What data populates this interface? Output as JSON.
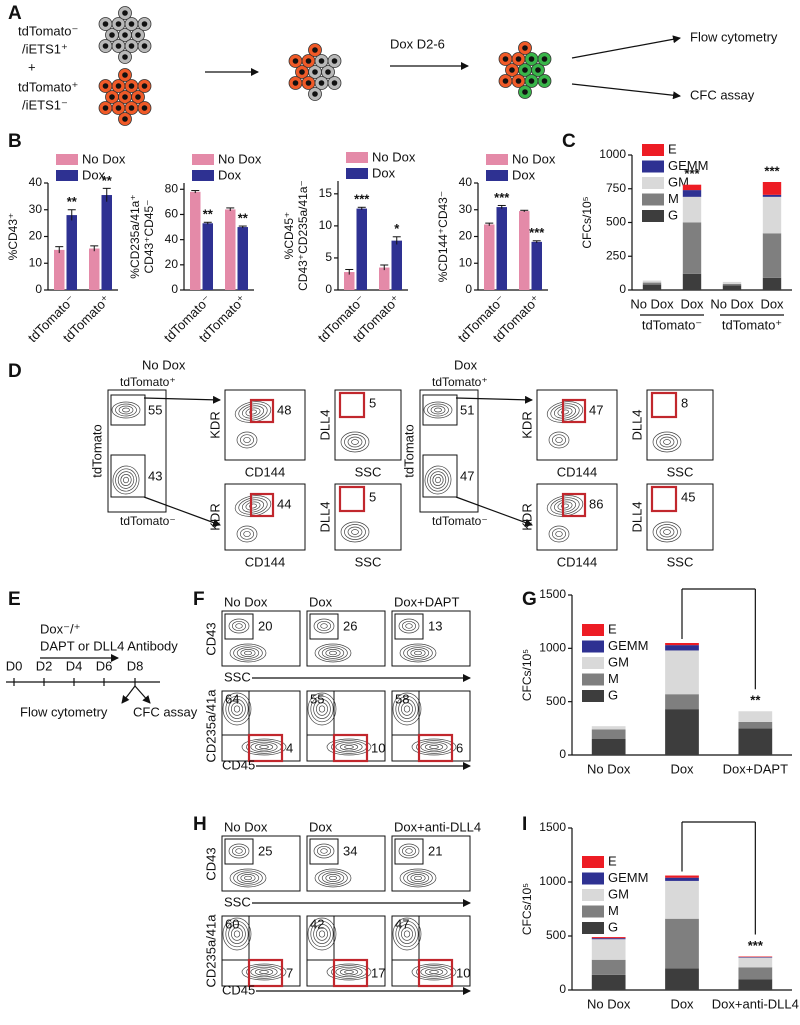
{
  "panel_labels": [
    "A",
    "B",
    "C",
    "D",
    "E",
    "F",
    "G",
    "H",
    "I"
  ],
  "panel_a": {
    "population_1": [
      "tdTomato⁻",
      "/iETS1⁺"
    ],
    "plus": "+",
    "population_2": [
      "tdTomato⁺",
      "/iETS1⁻"
    ],
    "treatment": "Dox D2-6",
    "readouts": [
      "Flow cytometry",
      "CFC assay"
    ]
  },
  "panel_d": {
    "axis_labels": {
      "tdtomato": "tdTomato",
      "kdr": "KDR",
      "cd144": "CD144",
      "dll4": "DLL4",
      "ssc": "SSC"
    },
    "conditions": [
      {
        "title": "No Dox",
        "gate_labels": [
          "tdTomato⁺",
          "tdTomato⁻"
        ],
        "gates": [
          55,
          43
        ],
        "kdr_gates": [
          48,
          44
        ],
        "dll4_gates": [
          5,
          5
        ]
      },
      {
        "title": "Dox",
        "gate_labels": [
          "tdTomato⁺",
          "tdTomato⁻"
        ],
        "gates": [
          51,
          47
        ],
        "kdr_gates": [
          47,
          86
        ],
        "dll4_gates": [
          8,
          45
        ]
      }
    ]
  },
  "panel_e": {
    "treatment": [
      "Dox⁻/⁺",
      "DAPT or DLL4 Antibody"
    ],
    "days": [
      "D0",
      "D2",
      "D4",
      "D6",
      "D8"
    ],
    "readouts": [
      "Flow cytometry",
      "CFC assay"
    ]
  },
  "panel_f": {
    "titles": [
      "No Dox",
      "Dox",
      "Dox+DAPT"
    ],
    "axis_labels": {
      "cd43": "CD43",
      "ssc": "SSC",
      "cd235": "CD235a/41a",
      "cd45": "CD45"
    },
    "cd43_gates": [
      20,
      26,
      13
    ],
    "cd235_gates": [
      64,
      55,
      58
    ],
    "cd45_gates": [
      4,
      10,
      6
    ]
  },
  "panel_h": {
    "titles": [
      "No Dox",
      "Dox",
      "Dox+anti-DLL4"
    ],
    "axis_labels": {
      "cd43": "CD43",
      "ssc": "SSC",
      "cd235": "CD235a/41a",
      "cd45": "CD45"
    },
    "cd43_gates": [
      25,
      34,
      21
    ],
    "cd235_gates": [
      60,
      42,
      47
    ],
    "cd45_gates": [
      7,
      17,
      10
    ]
  },
  "chart_data": [
    {
      "type": "bar",
      "ylabel": [
        "%CD43⁺"
      ],
      "categories": [
        "tdTomato⁻",
        "tdTomato⁺"
      ],
      "series": [
        {
          "name": "No Dox",
          "color": "#e48aa8",
          "values": [
            15,
            15.5
          ],
          "errors": [
            1.2,
            1
          ]
        },
        {
          "name": "Dox",
          "color": "#2e3192",
          "values": [
            28,
            35.5
          ],
          "errors": [
            2,
            2.5
          ]
        }
      ],
      "annotations": [
        "**",
        "**"
      ],
      "ylim": [
        0,
        40
      ],
      "yticks": [
        0,
        10,
        20,
        30,
        40
      ],
      "legend": "upper left"
    },
    {
      "type": "bar",
      "ylabel": [
        "%CD235a/41a⁺",
        "CD43⁺CD45⁻"
      ],
      "categories": [
        "tdTomato⁻",
        "tdTomato⁺"
      ],
      "series": [
        {
          "name": "No Dox",
          "color": "#e48aa8",
          "values": [
            78,
            64
          ],
          "errors": [
            1,
            1.2
          ]
        },
        {
          "name": "Dox",
          "color": "#2e3192",
          "values": [
            53,
            50
          ],
          "errors": [
            0.8,
            0.8
          ]
        }
      ],
      "annotations": [
        "**",
        "**"
      ],
      "ylim": [
        0,
        85
      ],
      "yticks": [
        0,
        20,
        40,
        60,
        80
      ],
      "legend": "upper left"
    },
    {
      "type": "bar",
      "ylabel": [
        "%CD45⁺",
        "CD43⁺CD235a/41a⁻"
      ],
      "categories": [
        "tdTomato⁻",
        "tdTomato⁺"
      ],
      "series": [
        {
          "name": "No Dox",
          "color": "#e48aa8",
          "values": [
            2.8,
            3.5
          ],
          "errors": [
            0.4,
            0.4
          ]
        },
        {
          "name": "Dox",
          "color": "#2e3192",
          "values": [
            12.7,
            7.7
          ],
          "errors": [
            0.2,
            0.6
          ]
        }
      ],
      "annotations": [
        "***",
        "*"
      ],
      "ylim": [
        0,
        17
      ],
      "yticks": [
        0,
        5,
        10,
        15
      ],
      "legend": "upper left"
    },
    {
      "type": "bar",
      "ylabel": [
        "%CD144⁺CD43⁻"
      ],
      "categories": [
        "tdTomato⁻",
        "tdTomato⁺"
      ],
      "series": [
        {
          "name": "No Dox",
          "color": "#e48aa8",
          "values": [
            24.5,
            29.5
          ],
          "errors": [
            0.5,
            0.3
          ]
        },
        {
          "name": "Dox",
          "color": "#2e3192",
          "values": [
            31,
            18
          ],
          "errors": [
            0.6,
            0.4
          ]
        }
      ],
      "annotations": [
        "***",
        "***"
      ],
      "ylim": [
        0,
        40
      ],
      "yticks": [
        0,
        10,
        20,
        30,
        40
      ],
      "legend": "upper left"
    },
    {
      "type": "stacked_bar",
      "ylabel": [
        "CFCs/10⁵"
      ],
      "categories": [
        "No Dox",
        "Dox",
        "No Dox",
        "Dox"
      ],
      "groups": [
        "tdTomato⁻",
        "tdTomato⁺"
      ],
      "series": [
        {
          "name": "G",
          "color": "#3d3d3d",
          "values": [
            40,
            120,
            35,
            90
          ]
        },
        {
          "name": "M",
          "color": "#7f7f7f",
          "values": [
            15,
            380,
            10,
            330
          ]
        },
        {
          "name": "GM",
          "color": "#d9d9d9",
          "values": [
            15,
            190,
            15,
            270
          ]
        },
        {
          "name": "GEMM",
          "color": "#2e3192",
          "values": [
            0,
            50,
            0,
            15
          ]
        },
        {
          "name": "E",
          "color": "#ed1c24",
          "values": [
            0,
            40,
            0,
            95
          ]
        }
      ],
      "annotations": [
        null,
        "***",
        null,
        "***"
      ],
      "ylim": [
        0,
        1000
      ],
      "yticks": [
        0,
        250,
        500,
        750,
        1000
      ],
      "legend": "upper left"
    },
    {
      "type": "stacked_bar",
      "ylabel": [
        "CFCs/10⁵"
      ],
      "categories": [
        "No Dox",
        "Dox",
        "Dox+DAPT"
      ],
      "series": [
        {
          "name": "G",
          "color": "#3d3d3d",
          "values": [
            150,
            430,
            250
          ]
        },
        {
          "name": "M",
          "color": "#7f7f7f",
          "values": [
            90,
            140,
            60
          ]
        },
        {
          "name": "GM",
          "color": "#d9d9d9",
          "values": [
            30,
            410,
            100
          ]
        },
        {
          "name": "GEMM",
          "color": "#2e3192",
          "values": [
            0,
            50,
            0
          ]
        },
        {
          "name": "E",
          "color": "#ed1c24",
          "values": [
            0,
            20,
            0
          ]
        }
      ],
      "annotations": [
        null,
        null,
        "**"
      ],
      "bracket": [
        1,
        2
      ],
      "ylim": [
        0,
        1500
      ],
      "yticks": [
        0,
        500,
        1000,
        1500
      ],
      "legend": "upper left"
    },
    {
      "type": "stacked_bar",
      "ylabel": [
        "CFCs/10⁵"
      ],
      "categories": [
        "No Dox",
        "Dox",
        "Dox+anti-DLL4"
      ],
      "series": [
        {
          "name": "G",
          "color": "#3d3d3d",
          "values": [
            140,
            200,
            100
          ]
        },
        {
          "name": "M",
          "color": "#7f7f7f",
          "values": [
            140,
            460,
            110
          ]
        },
        {
          "name": "GM",
          "color": "#d9d9d9",
          "values": [
            190,
            350,
            90
          ]
        },
        {
          "name": "GEMM",
          "color": "#2e3192",
          "values": [
            10,
            30,
            5
          ]
        },
        {
          "name": "E",
          "color": "#ed1c24",
          "values": [
            10,
            20,
            5
          ]
        }
      ],
      "annotations": [
        null,
        null,
        "***"
      ],
      "bracket": [
        1,
        2
      ],
      "ylim": [
        0,
        1500
      ],
      "yticks": [
        0,
        500,
        1000,
        1500
      ],
      "legend": "upper left"
    }
  ]
}
